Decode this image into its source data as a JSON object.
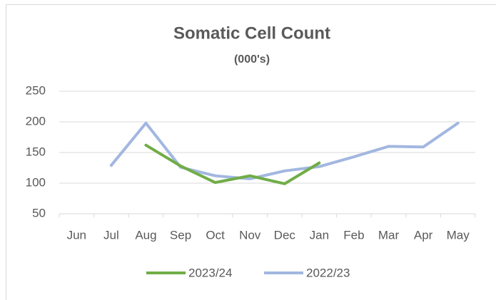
{
  "chart_data": {
    "type": "line",
    "title": "Somatic Cell Count",
    "subtitle": "(000's)",
    "categories": [
      "Jun",
      "Jul",
      "Aug",
      "Sep",
      "Oct",
      "Nov",
      "Dec",
      "Jan",
      "Feb",
      "Mar",
      "Apr",
      "May"
    ],
    "series": [
      {
        "name": "2023/24",
        "color": "#70ad47",
        "values": [
          null,
          null,
          162,
          128,
          101,
          112,
          99,
          133,
          null,
          null,
          null,
          null
        ]
      },
      {
        "name": "2022/23",
        "color": "#a2b7e0",
        "values": [
          null,
          129,
          198,
          126,
          112,
          107,
          120,
          127,
          143,
          160,
          159,
          198
        ]
      }
    ],
    "ylim": [
      50,
      250
    ],
    "yticks": [
      50,
      100,
      150,
      200,
      250
    ],
    "grid": true,
    "legend": "bottom"
  }
}
